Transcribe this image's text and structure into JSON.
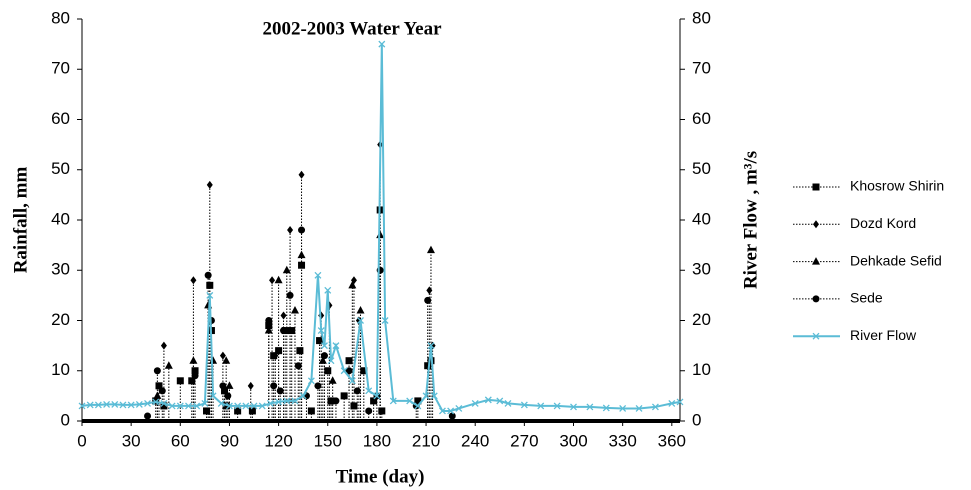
{
  "chart_data": {
    "type": "line",
    "title": "2002-2003 Water Year",
    "xlabel": "Time (day)",
    "ylabel": "Rainfall, mm",
    "y2label": "River Flow , m³/s",
    "xlim": [
      0,
      365
    ],
    "xticks": [
      0,
      30,
      60,
      90,
      120,
      150,
      180,
      210,
      240,
      270,
      300,
      330,
      360
    ],
    "ylim": [
      0,
      80
    ],
    "yticks": [
      0,
      10,
      20,
      30,
      40,
      50,
      60,
      70,
      80
    ],
    "y2lim": [
      0,
      80
    ],
    "y2ticks": [
      0,
      10,
      20,
      30,
      40,
      50,
      60,
      70,
      80
    ],
    "series": [
      {
        "name": "Khosrow Shirin",
        "color": "#000000",
        "marker": "square",
        "x": [
          45,
          47,
          50,
          60,
          67,
          69,
          76,
          78,
          79,
          87,
          88,
          95,
          104,
          114,
          117,
          120,
          124,
          128,
          133,
          134,
          140,
          145,
          150,
          152,
          160,
          163,
          166,
          172,
          178,
          182,
          183,
          205,
          211,
          213
        ],
        "values": [
          4,
          7,
          3,
          8,
          8,
          10,
          2,
          27,
          18,
          6,
          3,
          2,
          2,
          19,
          13,
          14,
          18,
          18,
          14,
          31,
          2,
          16,
          10,
          4,
          5,
          12,
          3,
          10,
          4,
          42,
          2,
          4,
          11,
          12
        ]
      },
      {
        "name": "Dozd Kord",
        "color": "#000000",
        "marker": "diamond",
        "x": [
          50,
          68,
          78,
          86,
          103,
          116,
          118,
          123,
          127,
          134,
          146,
          151,
          166,
          169,
          182,
          212,
          214
        ],
        "values": [
          15,
          28,
          47,
          13,
          7,
          28,
          13,
          21,
          38,
          49,
          21,
          23,
          28,
          20,
          55,
          26,
          15
        ]
      },
      {
        "name": "Dehkade Sefid",
        "color": "#000000",
        "marker": "triangle",
        "x": [
          46,
          53,
          68,
          77,
          80,
          88,
          90,
          114,
          120,
          125,
          130,
          134,
          147,
          153,
          165,
          170,
          182,
          213
        ],
        "values": [
          5,
          11,
          12,
          23,
          12,
          12,
          7,
          18,
          28,
          30,
          22,
          33,
          12,
          8,
          27,
          22,
          37,
          34
        ]
      },
      {
        "name": "Sede",
        "color": "#000000",
        "marker": "circle",
        "x": [
          40,
          46,
          49,
          69,
          77,
          79,
          86,
          89,
          114,
          117,
          121,
          123,
          127,
          132,
          134,
          137,
          144,
          148,
          155,
          163,
          168,
          175,
          180,
          182,
          204,
          211,
          226
        ],
        "values": [
          1,
          10,
          6,
          9,
          29,
          20,
          7,
          5,
          20,
          7,
          6,
          18,
          25,
          11,
          38,
          5,
          7,
          13,
          4,
          10,
          6,
          2,
          5,
          30,
          3,
          24,
          1
        ]
      },
      {
        "name": "River Flow",
        "color": "#5bbcd6",
        "marker": "x",
        "axis": "y2",
        "x": [
          0,
          5,
          10,
          15,
          20,
          25,
          30,
          35,
          40,
          45,
          50,
          55,
          60,
          65,
          70,
          75,
          78,
          80,
          85,
          90,
          95,
          100,
          105,
          110,
          115,
          120,
          125,
          130,
          135,
          140,
          144,
          146,
          148,
          150,
          152,
          155,
          160,
          165,
          170,
          175,
          180,
          183,
          185,
          190,
          200,
          205,
          210,
          213,
          215,
          220,
          225,
          230,
          240,
          248,
          255,
          260,
          270,
          280,
          290,
          300,
          310,
          320,
          330,
          340,
          350,
          360,
          365
        ],
        "values": [
          3,
          3.2,
          3.2,
          3.3,
          3.3,
          3.2,
          3.2,
          3.3,
          3.5,
          3.8,
          3.5,
          3,
          3,
          3,
          3,
          3.5,
          25,
          5,
          3.5,
          3,
          3,
          3,
          3,
          3,
          3.5,
          3.8,
          4,
          4,
          5,
          8,
          29,
          18,
          15,
          26,
          12,
          15,
          10,
          8,
          20,
          6,
          5,
          75,
          20,
          4,
          4,
          3,
          5,
          15,
          5,
          2,
          2,
          2.5,
          3.5,
          4.2,
          4,
          3.5,
          3.2,
          3,
          3,
          2.8,
          2.8,
          2.6,
          2.5,
          2.5,
          2.8,
          3.5,
          3.8
        ]
      }
    ]
  }
}
